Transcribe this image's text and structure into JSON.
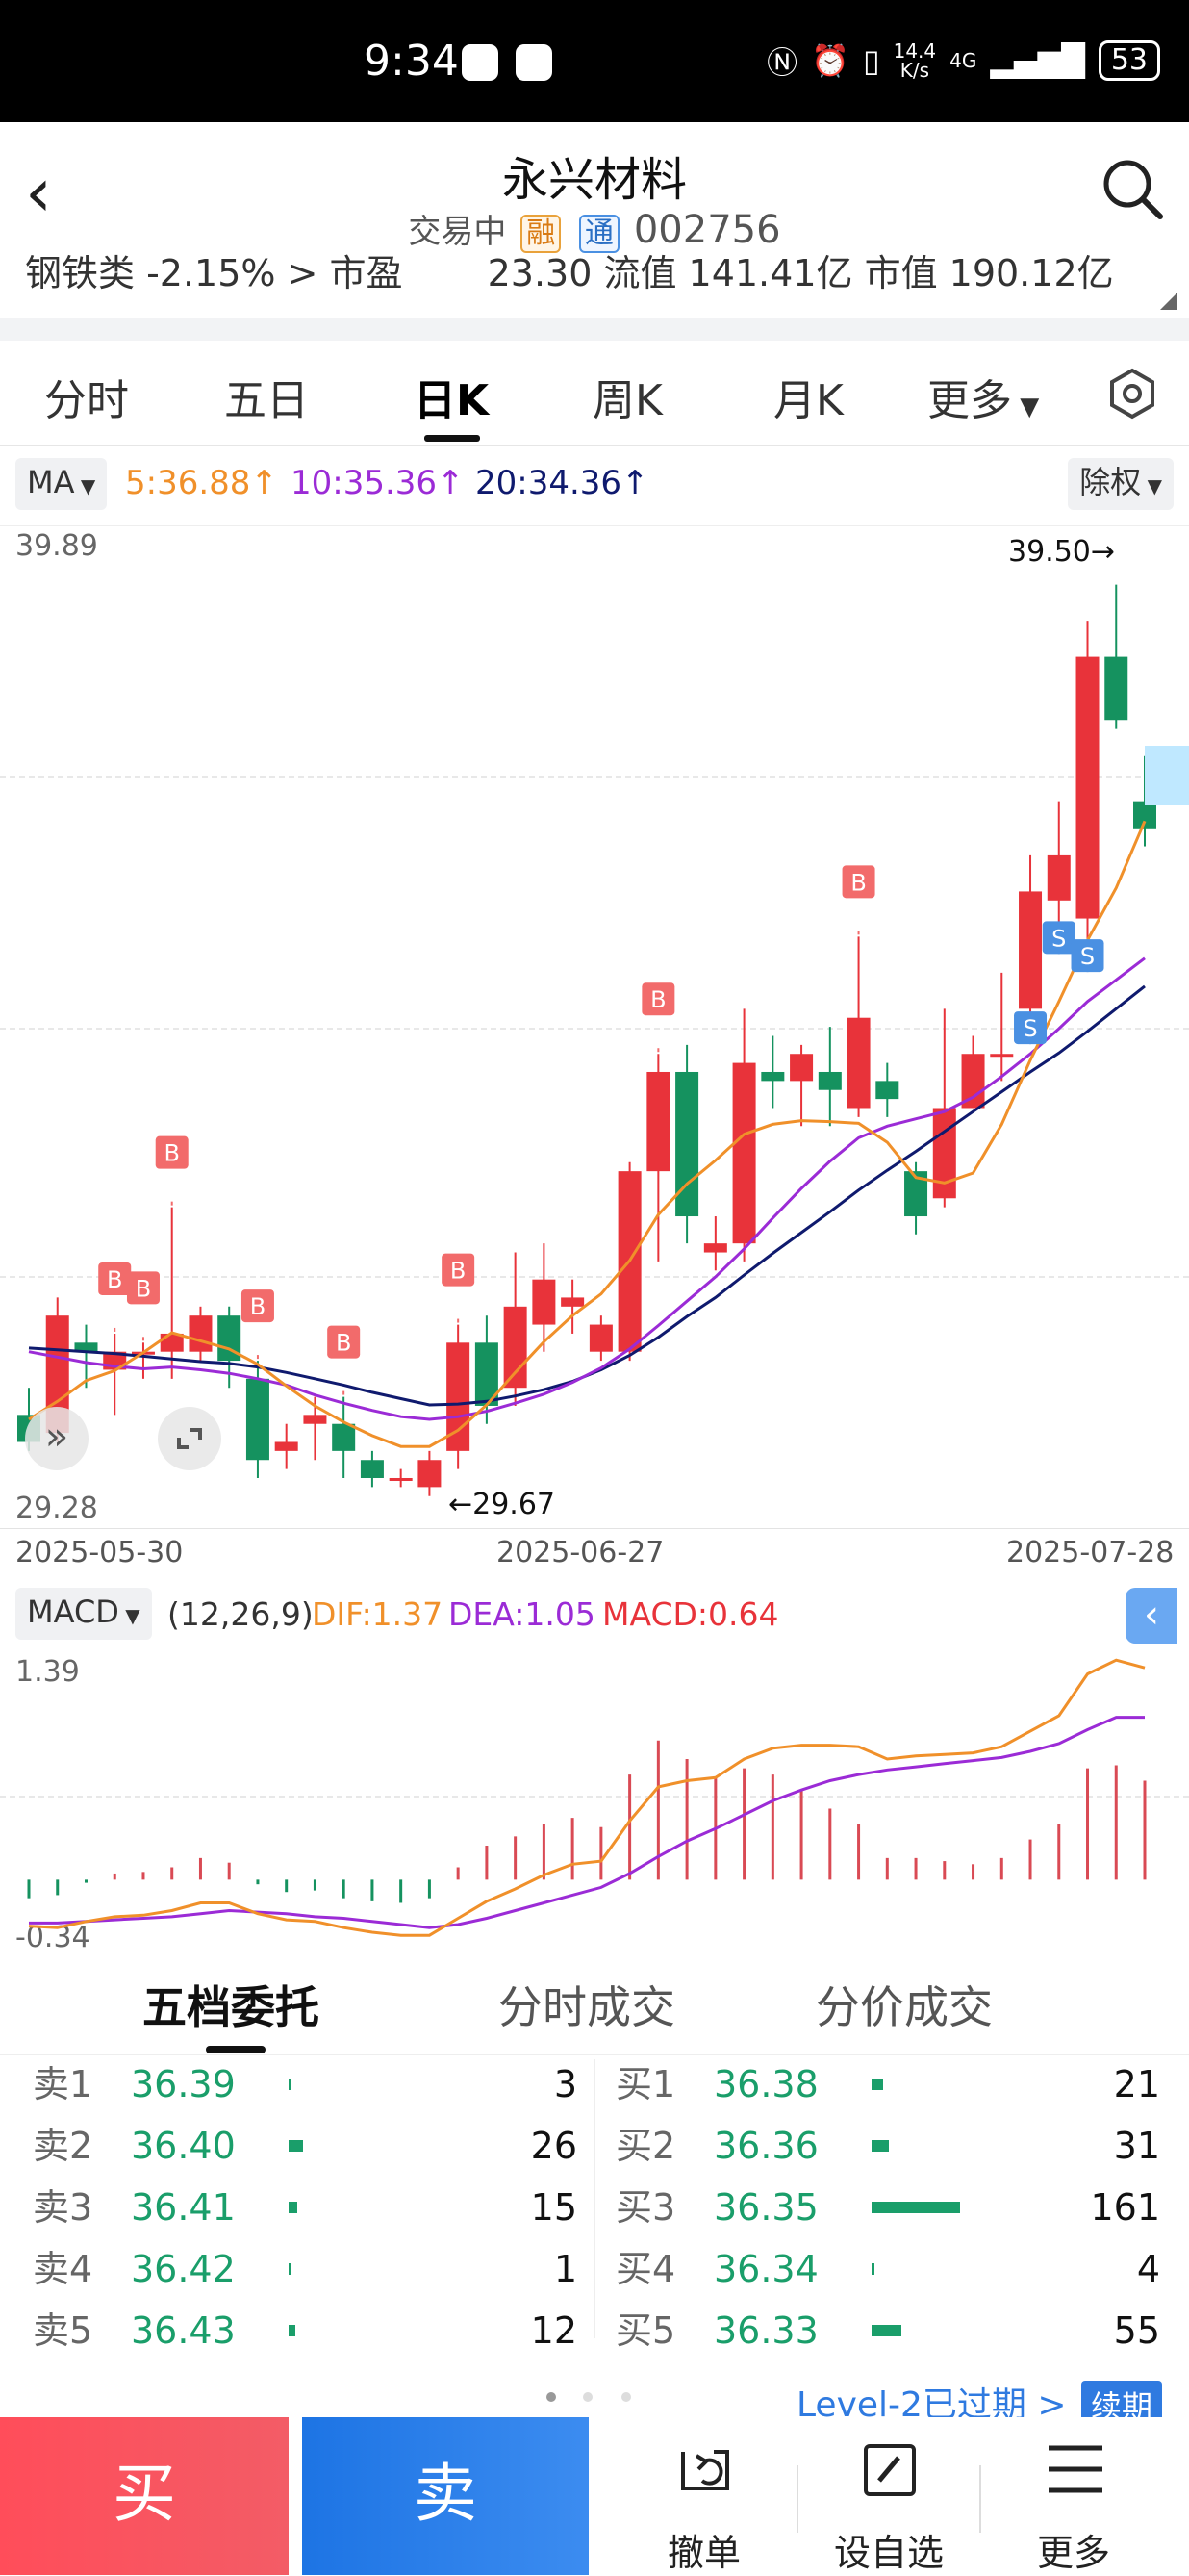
{
  "status": {
    "time": "9:34",
    "speed_top": "14.4",
    "speed_bottom": "K/s",
    "network": "4G",
    "battery": "53"
  },
  "header": {
    "title": "永兴材料",
    "status": "交易中",
    "tag_rong": "融",
    "tag_tong": "通",
    "code": "002756"
  },
  "infostrip": {
    "text": "钢铁类 -2.15% > 市盈　　 23.30 流值 141.41亿 市值 190.12亿"
  },
  "tabs": [
    "分时",
    "五日",
    "日K",
    "周K",
    "月K",
    "更多"
  ],
  "ma": {
    "label": "MA",
    "ma5": "5:36.88↑",
    "ma10": "10:35.36↑",
    "ma20": "20:34.36↑",
    "adjust": "除权"
  },
  "kchart": {
    "y_max": "39.89",
    "y_min": "29.28",
    "high_label": "39.50→",
    "low_label": "←29.67",
    "dates": [
      "2025-05-30",
      "2025-06-27",
      "2025-07-28"
    ],
    "marker_b": "B",
    "marker_s": "S",
    "colors": {
      "up": "#e8333a",
      "down": "#15925f",
      "ma5": "#f0902a",
      "ma10": "#9b2bd6",
      "ma20": "#0f1a6e",
      "marker_b": "#f26b6b",
      "marker_s": "#4a90e2"
    }
  },
  "chart_data": {
    "type": "candlestick",
    "ylim": [
      29.28,
      39.89
    ],
    "candles": [
      {
        "o": 30.3,
        "c": 30.0,
        "h": 30.6,
        "l": 29.9
      },
      {
        "o": 30.1,
        "c": 31.4,
        "h": 31.6,
        "l": 30.0
      },
      {
        "o": 31.1,
        "c": 31.0,
        "h": 31.3,
        "l": 30.6
      },
      {
        "o": 30.8,
        "c": 31.0,
        "h": 31.2,
        "l": 30.3
      },
      {
        "o": 31.0,
        "c": 31.0,
        "h": 31.1,
        "l": 30.7
      },
      {
        "o": 31.0,
        "c": 31.2,
        "h": 32.6,
        "l": 30.7
      },
      {
        "o": 31.0,
        "c": 31.4,
        "h": 31.5,
        "l": 30.9
      },
      {
        "o": 31.4,
        "c": 30.9,
        "h": 31.5,
        "l": 30.6
      },
      {
        "o": 30.7,
        "c": 29.8,
        "h": 30.9,
        "l": 29.6
      },
      {
        "o": 29.9,
        "c": 30.0,
        "h": 30.2,
        "l": 29.7
      },
      {
        "o": 30.2,
        "c": 30.3,
        "h": 30.5,
        "l": 29.8
      },
      {
        "o": 30.2,
        "c": 29.9,
        "h": 30.5,
        "l": 29.6
      },
      {
        "o": 29.8,
        "c": 29.6,
        "h": 29.9,
        "l": 29.5
      },
      {
        "o": 29.6,
        "c": 29.6,
        "h": 29.7,
        "l": 29.5
      },
      {
        "o": 29.5,
        "c": 29.8,
        "h": 29.9,
        "l": 29.4
      },
      {
        "o": 29.9,
        "c": 31.1,
        "h": 31.3,
        "l": 29.7
      },
      {
        "o": 31.1,
        "c": 30.4,
        "h": 31.4,
        "l": 30.2
      },
      {
        "o": 30.6,
        "c": 31.5,
        "h": 32.1,
        "l": 30.4
      },
      {
        "o": 31.3,
        "c": 31.8,
        "h": 32.2,
        "l": 31.0
      },
      {
        "o": 31.5,
        "c": 31.6,
        "h": 31.8,
        "l": 31.2
      },
      {
        "o": 31.0,
        "c": 31.3,
        "h": 31.4,
        "l": 30.9
      },
      {
        "o": 31.0,
        "c": 33.0,
        "h": 33.1,
        "l": 30.9
      },
      {
        "o": 33.0,
        "c": 34.1,
        "h": 34.3,
        "l": 32.0
      },
      {
        "o": 34.1,
        "c": 32.5,
        "h": 34.4,
        "l": 32.2
      },
      {
        "o": 32.1,
        "c": 32.2,
        "h": 32.5,
        "l": 31.9
      },
      {
        "o": 32.2,
        "c": 34.2,
        "h": 34.8,
        "l": 32.0
      },
      {
        "o": 34.1,
        "c": 34.0,
        "h": 34.5,
        "l": 33.7
      },
      {
        "o": 34.0,
        "c": 34.3,
        "h": 34.4,
        "l": 33.5
      },
      {
        "o": 34.1,
        "c": 33.9,
        "h": 34.6,
        "l": 33.5
      },
      {
        "o": 33.7,
        "c": 34.7,
        "h": 35.6,
        "l": 33.6
      },
      {
        "o": 34.0,
        "c": 33.8,
        "h": 34.2,
        "l": 33.6
      },
      {
        "o": 33.0,
        "c": 32.5,
        "h": 33.1,
        "l": 32.3
      },
      {
        "o": 32.7,
        "c": 33.7,
        "h": 34.8,
        "l": 32.6
      },
      {
        "o": 33.7,
        "c": 34.3,
        "h": 34.5,
        "l": 33.7
      },
      {
        "o": 34.3,
        "c": 34.3,
        "h": 35.2,
        "l": 34.0
      },
      {
        "o": 34.8,
        "c": 36.1,
        "h": 36.5,
        "l": 34.6
      },
      {
        "o": 36.0,
        "c": 36.5,
        "h": 37.1,
        "l": 35.6
      },
      {
        "o": 35.8,
        "c": 38.7,
        "h": 39.1,
        "l": 35.4
      },
      {
        "o": 38.7,
        "c": 38.0,
        "h": 39.5,
        "l": 37.9
      },
      {
        "o": 37.1,
        "c": 36.8,
        "h": 37.6,
        "l": 36.6
      }
    ],
    "ma5": [
      30.25,
      30.45,
      30.68,
      30.79,
      30.99,
      31.21,
      31.12,
      31.03,
      30.86,
      30.62,
      30.4,
      30.22,
      30.07,
      29.95,
      29.95,
      30.13,
      30.41,
      30.77,
      31.11,
      31.4,
      31.64,
      32.01,
      32.52,
      32.86,
      33.12,
      33.41,
      33.52,
      33.56,
      33.55,
      33.53,
      33.32,
      32.93,
      32.87,
      32.98,
      33.52,
      34.23,
      34.88,
      35.56,
      36.14,
      36.88
    ],
    "ma10": [
      31.0,
      30.94,
      30.88,
      30.84,
      30.81,
      30.83,
      30.8,
      30.76,
      30.7,
      30.63,
      30.52,
      30.43,
      30.35,
      30.28,
      30.25,
      30.28,
      30.34,
      30.43,
      30.53,
      30.66,
      30.82,
      31.03,
      31.29,
      31.56,
      31.83,
      32.14,
      32.48,
      32.81,
      33.11,
      33.37,
      33.5,
      33.58,
      33.66,
      33.82,
      34.05,
      34.3,
      34.58,
      34.88,
      35.12,
      35.36
    ],
    "ma20": [
      31.04,
      31.02,
      31.0,
      30.98,
      30.95,
      30.92,
      30.89,
      30.87,
      30.83,
      30.77,
      30.7,
      30.63,
      30.55,
      30.48,
      30.41,
      30.42,
      30.45,
      30.51,
      30.58,
      30.67,
      30.8,
      30.96,
      31.16,
      31.39,
      31.6,
      31.85,
      32.09,
      32.32,
      32.55,
      32.79,
      33.01,
      33.22,
      33.44,
      33.66,
      33.88,
      34.1,
      34.31,
      34.55,
      34.8,
      35.05
    ],
    "macd": {
      "params": "(12,26,9)",
      "dif_label": "DIF:1.37",
      "dea_label": "DEA:1.05",
      "macd_label": "MACD:0.64",
      "ylim": [
        -0.34,
        1.39
      ],
      "dif": [
        -0.3,
        -0.31,
        -0.27,
        -0.24,
        -0.23,
        -0.2,
        -0.15,
        -0.15,
        -0.22,
        -0.26,
        -0.27,
        -0.31,
        -0.34,
        -0.36,
        -0.36,
        -0.25,
        -0.14,
        -0.06,
        0.03,
        0.1,
        0.12,
        0.38,
        0.6,
        0.64,
        0.66,
        0.78,
        0.85,
        0.87,
        0.87,
        0.86,
        0.78,
        0.8,
        0.81,
        0.82,
        0.86,
        0.96,
        1.06,
        1.33,
        1.42,
        1.37
      ],
      "dea": [
        -0.28,
        -0.28,
        -0.27,
        -0.26,
        -0.25,
        -0.24,
        -0.22,
        -0.2,
        -0.21,
        -0.22,
        -0.24,
        -0.25,
        -0.27,
        -0.29,
        -0.31,
        -0.29,
        -0.25,
        -0.2,
        -0.15,
        -0.1,
        -0.05,
        0.04,
        0.15,
        0.25,
        0.33,
        0.42,
        0.51,
        0.58,
        0.64,
        0.68,
        0.71,
        0.73,
        0.75,
        0.77,
        0.79,
        0.83,
        0.88,
        0.97,
        1.05,
        1.05
      ],
      "hist": [
        -0.12,
        -0.1,
        -0.02,
        0.04,
        0.05,
        0.08,
        0.14,
        0.11,
        -0.03,
        -0.08,
        -0.07,
        -0.12,
        -0.14,
        -0.15,
        -0.12,
        0.08,
        0.22,
        0.28,
        0.36,
        0.4,
        0.34,
        0.68,
        0.9,
        0.78,
        0.66,
        0.72,
        0.68,
        0.58,
        0.46,
        0.36,
        0.14,
        0.14,
        0.12,
        0.1,
        0.14,
        0.26,
        0.36,
        0.72,
        0.74,
        0.64
      ]
    }
  },
  "orderbook": {
    "tabs": [
      "五档委托",
      "分时成交",
      "分价成交"
    ],
    "sell": [
      {
        "label": "卖1",
        "price": "36.39",
        "qty": "3"
      },
      {
        "label": "卖2",
        "price": "36.40",
        "qty": "26"
      },
      {
        "label": "卖3",
        "price": "36.41",
        "qty": "15"
      },
      {
        "label": "卖4",
        "price": "36.42",
        "qty": "1"
      },
      {
        "label": "卖5",
        "price": "36.43",
        "qty": "12"
      }
    ],
    "buy": [
      {
        "label": "买1",
        "price": "36.38",
        "qty": "21"
      },
      {
        "label": "买2",
        "price": "36.36",
        "qty": "31"
      },
      {
        "label": "买3",
        "price": "36.35",
        "qty": "161"
      },
      {
        "label": "买4",
        "price": "36.34",
        "qty": "4"
      },
      {
        "label": "买5",
        "price": "36.33",
        "qty": "55"
      }
    ],
    "level2": "Level-2已过期 >",
    "renew": "续期"
  },
  "bottom": {
    "buy": "买",
    "sell": "卖",
    "cancel": "撤单",
    "watch": "设自选",
    "more": "更多"
  }
}
